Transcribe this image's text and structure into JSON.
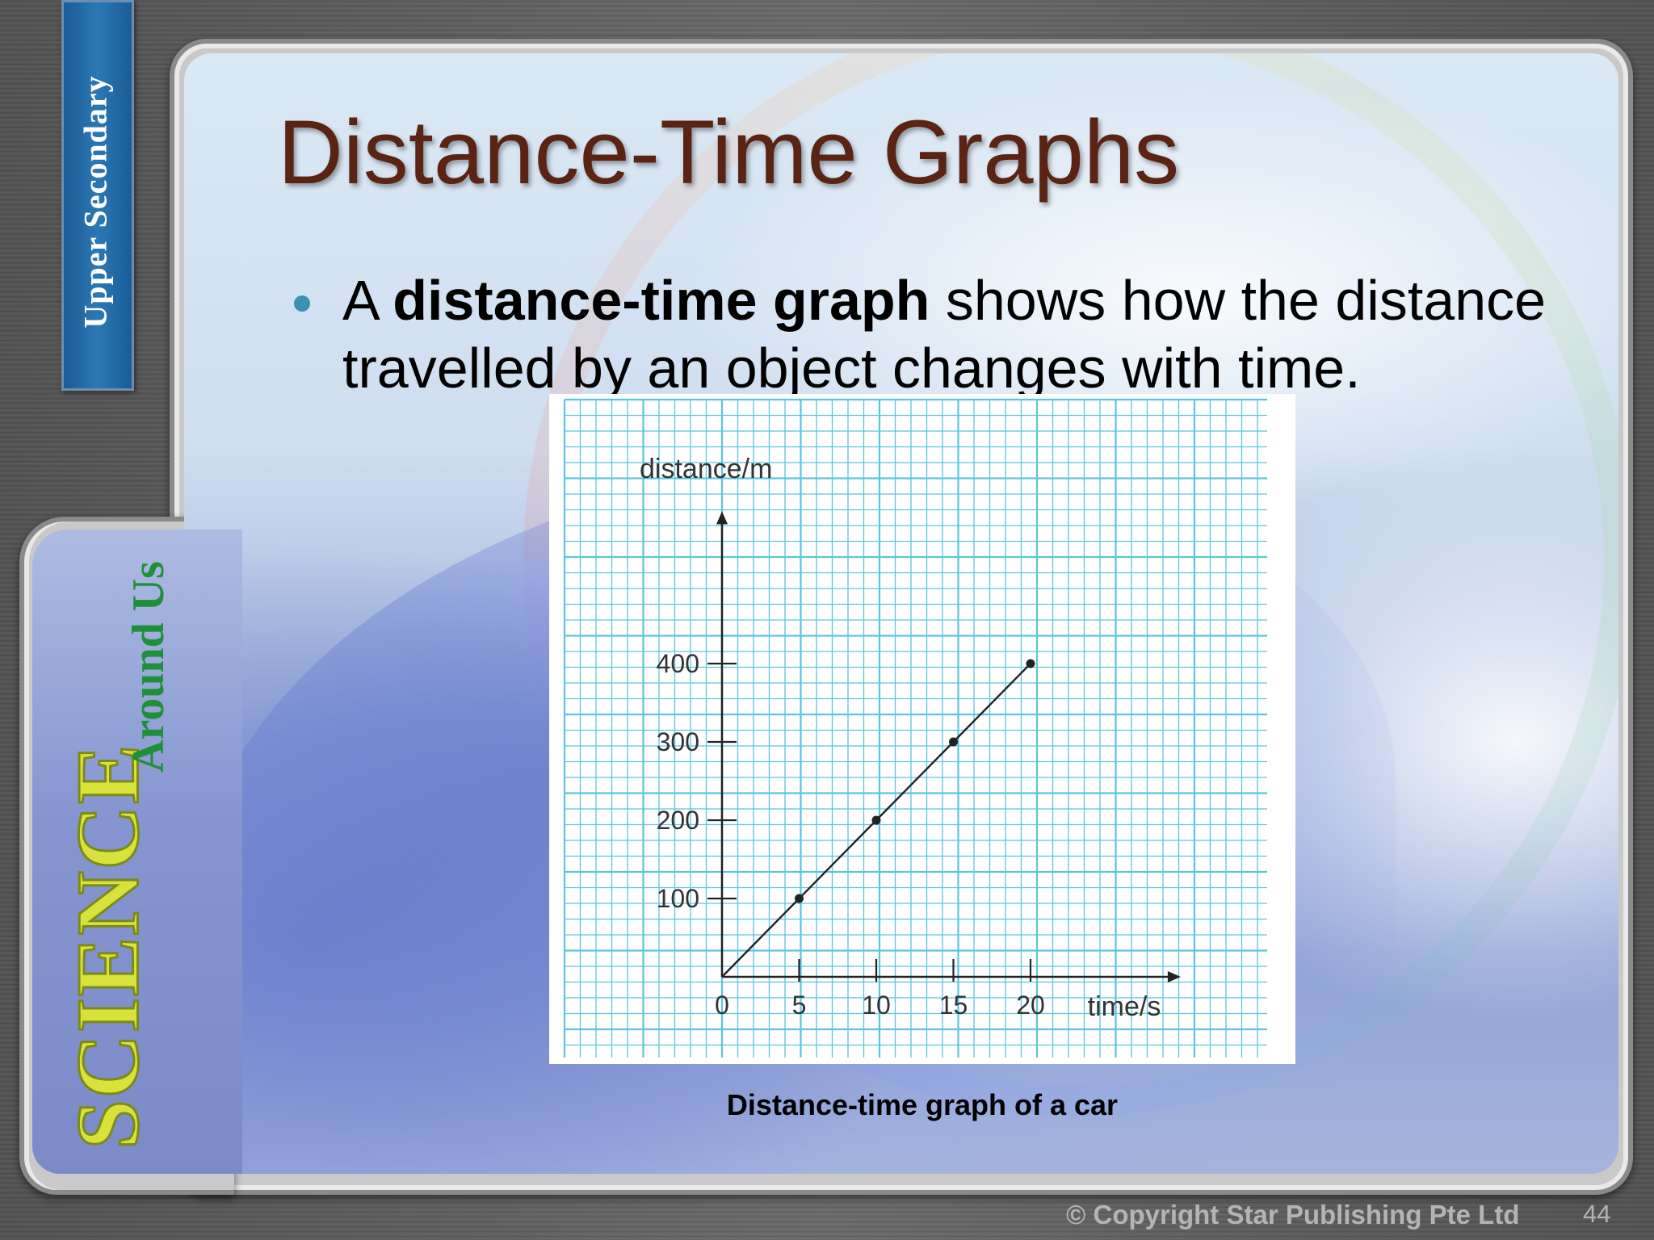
{
  "slide": {
    "title": "Distance-Time Graphs",
    "bullet": {
      "prefix": "A ",
      "bold": "distance-time graph",
      "rest": " shows how the distance travelled by an object changes with time."
    },
    "caption": "Distance-time graph of a car",
    "copyright": "© Copyright Star Publishing Pte Ltd",
    "page_number": "44"
  },
  "branding": {
    "series_tab": "Upper Secondary",
    "science": "SCIENCE",
    "around_us": "Around Us"
  },
  "colors": {
    "title": "#5a2313",
    "bullet": "#3a93b0",
    "grid": "#5ec4dd",
    "series_tab": "#2c78b4"
  },
  "chart_data": {
    "type": "line",
    "xlabel": "time/s",
    "ylabel": "distance/m",
    "origin_label": "0",
    "x_ticks": [
      5,
      10,
      15,
      20
    ],
    "y_ticks": [
      100,
      200,
      300,
      400
    ],
    "xlim": [
      0,
      29
    ],
    "ylim": [
      0,
      580
    ],
    "grid": true,
    "series": [
      {
        "x": [
          0,
          5,
          10,
          15,
          20
        ],
        "y": [
          0,
          100,
          200,
          300,
          400
        ]
      }
    ]
  }
}
